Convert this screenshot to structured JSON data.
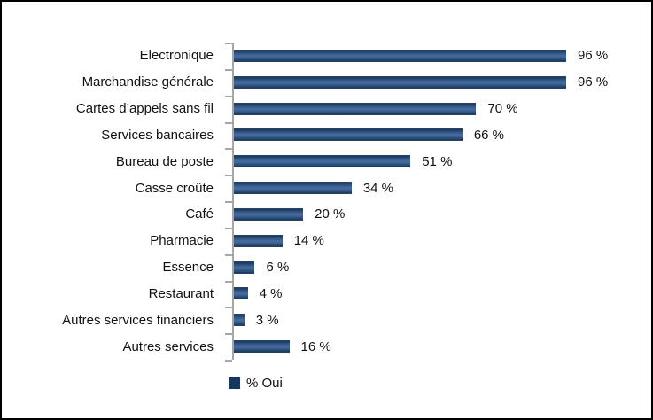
{
  "chart_data": {
    "type": "bar",
    "orientation": "horizontal",
    "title": "",
    "xlabel": "",
    "ylabel": "",
    "categories": [
      "Electronique",
      "Marchandise générale",
      "Cartes d’appels sans fil",
      "Services bancaires",
      "Bureau de poste",
      "Casse croûte",
      "Café",
      "Pharmacie",
      "Essence",
      "Restaurant",
      "Autres services financiers",
      "Autres services"
    ],
    "values": [
      96,
      96,
      70,
      66,
      51,
      34,
      20,
      14,
      6,
      4,
      3,
      16
    ],
    "value_labels": [
      "96 %",
      "96 %",
      "70 %",
      "66 %",
      "51 %",
      "34 %",
      "20 %",
      "14 %",
      "6 %",
      "4 %",
      "3 %",
      "16 %"
    ],
    "series_name": "% Oui",
    "legend": {
      "label": "% Oui",
      "position": "bottom-left"
    },
    "xlim": [
      0,
      100
    ],
    "grid": false,
    "colors": {
      "bar_dark": "#17375e",
      "bar_light": "#44699c",
      "axis": "#a6a6a6",
      "text": "#111111",
      "background": "#ffffff",
      "frame_border": "#000000"
    }
  }
}
